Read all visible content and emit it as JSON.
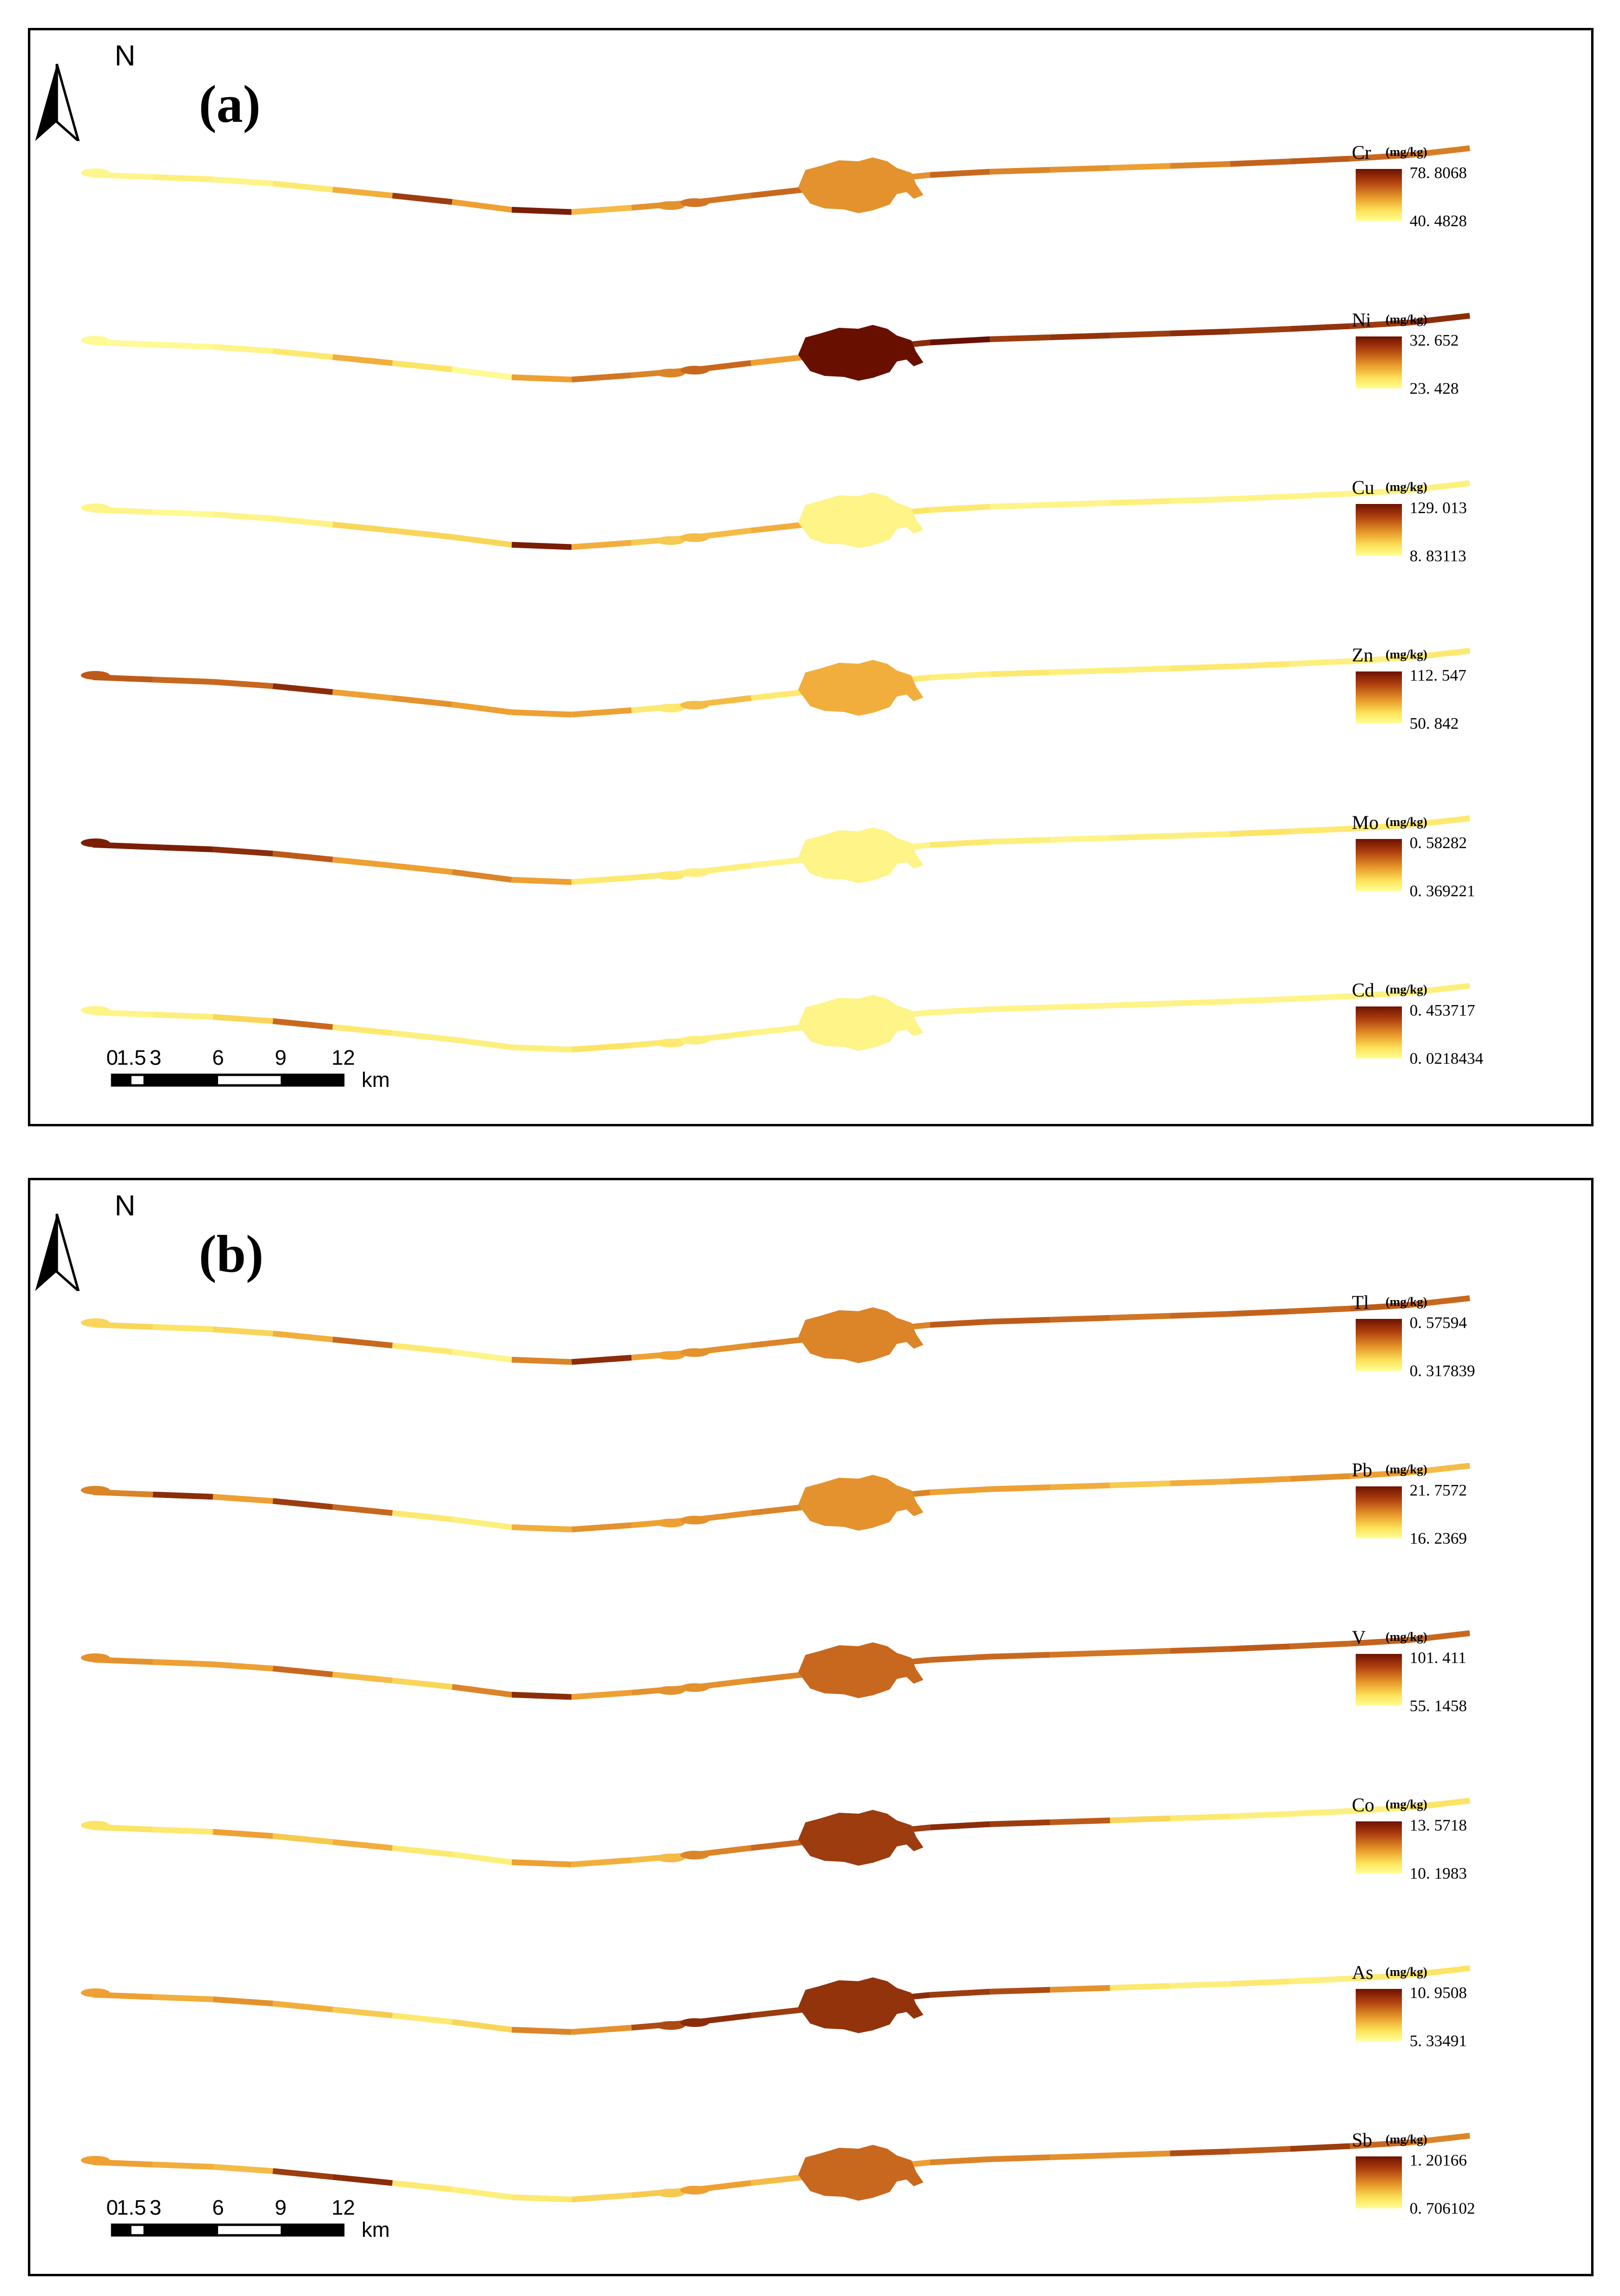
{
  "figure": {
    "background": "#ffffff",
    "panels": [
      {
        "label": "(a)",
        "north_label": "N",
        "scale_bar": {
          "ticks": [
            "0",
            "1.5",
            "3",
            "6",
            "9",
            "12"
          ],
          "unit": "km"
        },
        "maps": [
          {
            "element": "Cr",
            "unit": "(mg/kg)",
            "max": "78. 8068",
            "min": "40. 4828",
            "segments": [
              0.08,
              0.15,
              0.1,
              0.2,
              0.45,
              0.85,
              0.5,
              0.95,
              0.4,
              0.55,
              0.65,
              0.7,
              0.6,
              0.55,
              0.7,
              0.6,
              0.55,
              0.5,
              0.6,
              0.72,
              0.75,
              0.7,
              0.62
            ],
            "lake": 0.55
          },
          {
            "element": "Ni",
            "unit": "(mg/kg)",
            "max": "32. 652",
            "min": "23. 428",
            "segments": [
              0.05,
              0.05,
              0.1,
              0.2,
              0.45,
              0.25,
              0.05,
              0.5,
              0.65,
              0.6,
              0.7,
              0.5,
              0.8,
              0.9,
              1.0,
              0.85,
              0.88,
              0.85,
              0.9,
              0.85,
              0.88,
              0.85,
              0.9
            ],
            "lake": 1.0
          },
          {
            "element": "Cu",
            "unit": "(mg/kg)",
            "max": "129. 013",
            "min": "8. 83113",
            "segments": [
              0.1,
              0.05,
              0.1,
              0.12,
              0.3,
              0.3,
              0.3,
              0.95,
              0.45,
              0.35,
              0.4,
              0.45,
              0.3,
              0.25,
              0.2,
              0.1,
              0.1,
              0.15,
              0.1,
              0.1,
              0.1,
              0.12,
              0.15
            ],
            "lake": 0.1
          },
          {
            "element": "Zn",
            "unit": "(mg/kg)",
            "max": "112. 547",
            "min": "50. 842",
            "segments": [
              0.75,
              0.7,
              0.7,
              0.9,
              0.5,
              0.55,
              0.5,
              0.5,
              0.5,
              0.2,
              0.4,
              0.2,
              0.3,
              0.2,
              0.15,
              0.2,
              0.15,
              0.15,
              0.2,
              0.2,
              0.15,
              0.15,
              0.2
            ],
            "lake": 0.45
          },
          {
            "element": "Mo",
            "unit": "(mg/kg)",
            "max": "0. 58282",
            "min": "0. 369221",
            "segments": [
              0.95,
              0.95,
              0.9,
              0.75,
              0.5,
              0.5,
              0.6,
              0.5,
              0.2,
              0.2,
              0.15,
              0.1,
              0.1,
              0.1,
              0.2,
              0.15,
              0.1,
              0.15,
              0.15,
              0.25,
              0.2,
              0.2,
              0.2
            ],
            "lake": 0.1
          },
          {
            "element": "Cd",
            "unit": "(mg/kg)",
            "max": "0. 453717",
            "min": "0. 0218434",
            "segments": [
              0.1,
              0.15,
              0.3,
              0.7,
              0.2,
              0.15,
              0.15,
              0.15,
              0.25,
              0.2,
              0.15,
              0.1,
              0.1,
              0.1,
              0.1,
              0.1,
              0.1,
              0.1,
              0.12,
              0.1,
              0.1,
              0.12,
              0.15
            ],
            "lake": 0.1
          }
        ]
      },
      {
        "label": "(b)",
        "north_label": "N",
        "scale_bar": {
          "ticks": [
            "0",
            "1.5",
            "3",
            "6",
            "9",
            "12"
          ],
          "unit": "km"
        },
        "maps": [
          {
            "element": "Tl",
            "unit": "(mg/kg)",
            "max": "0. 57594",
            "min": "0. 317839",
            "segments": [
              0.3,
              0.25,
              0.3,
              0.45,
              0.7,
              0.2,
              0.1,
              0.6,
              0.9,
              0.5,
              0.55,
              0.6,
              0.5,
              0.6,
              0.75,
              0.75,
              0.7,
              0.65,
              0.7,
              0.72,
              0.7,
              0.75,
              0.7
            ],
            "lake": 0.6
          },
          {
            "element": "Pb",
            "unit": "(mg/kg)",
            "max": "21. 7572",
            "min": "16. 2369",
            "segments": [
              0.6,
              0.9,
              0.5,
              0.85,
              0.7,
              0.2,
              0.15,
              0.45,
              0.55,
              0.5,
              0.55,
              0.6,
              0.55,
              0.6,
              0.5,
              0.5,
              0.45,
              0.35,
              0.45,
              0.5,
              0.55,
              0.5,
              0.4
            ],
            "lake": 0.55
          },
          {
            "element": "V",
            "unit": "(mg/kg)",
            "max": "101. 411",
            "min": "55. 1458",
            "segments": [
              0.55,
              0.5,
              0.5,
              0.7,
              0.4,
              0.3,
              0.6,
              0.9,
              0.5,
              0.55,
              0.55,
              0.6,
              0.6,
              0.7,
              0.7,
              0.7,
              0.65,
              0.65,
              0.72,
              0.75,
              0.7,
              0.72,
              0.7
            ],
            "lake": 0.7
          },
          {
            "element": "Co",
            "unit": "(mg/kg)",
            "max": "13. 5718",
            "min": "10. 1983",
            "segments": [
              0.25,
              0.2,
              0.5,
              0.35,
              0.45,
              0.2,
              0.15,
              0.5,
              0.45,
              0.4,
              0.6,
              0.7,
              0.8,
              0.85,
              0.9,
              0.85,
              0.75,
              0.3,
              0.2,
              0.15,
              0.15,
              0.15,
              0.25
            ],
            "lake": 0.85
          },
          {
            "element": "As",
            "unit": "(mg/kg)",
            "max": "10. 9508",
            "min": "5. 33491",
            "segments": [
              0.5,
              0.45,
              0.55,
              0.45,
              0.35,
              0.2,
              0.3,
              0.6,
              0.55,
              0.8,
              0.9,
              0.85,
              0.4,
              0.9,
              0.85,
              0.8,
              0.55,
              0.2,
              0.15,
              0.2,
              0.15,
              0.2,
              0.25
            ],
            "lake": 0.88
          },
          {
            "element": "Sb",
            "unit": "(mg/kg)",
            "max": "1. 20166",
            "min": "0. 706102",
            "segments": [
              0.5,
              0.45,
              0.4,
              0.85,
              0.9,
              0.2,
              0.15,
              0.2,
              0.3,
              0.35,
              0.5,
              0.4,
              0.45,
              0.5,
              0.6,
              0.6,
              0.55,
              0.55,
              0.8,
              0.75,
              0.85,
              0.7,
              0.6
            ],
            "lake": 0.7
          }
        ]
      }
    ]
  }
}
